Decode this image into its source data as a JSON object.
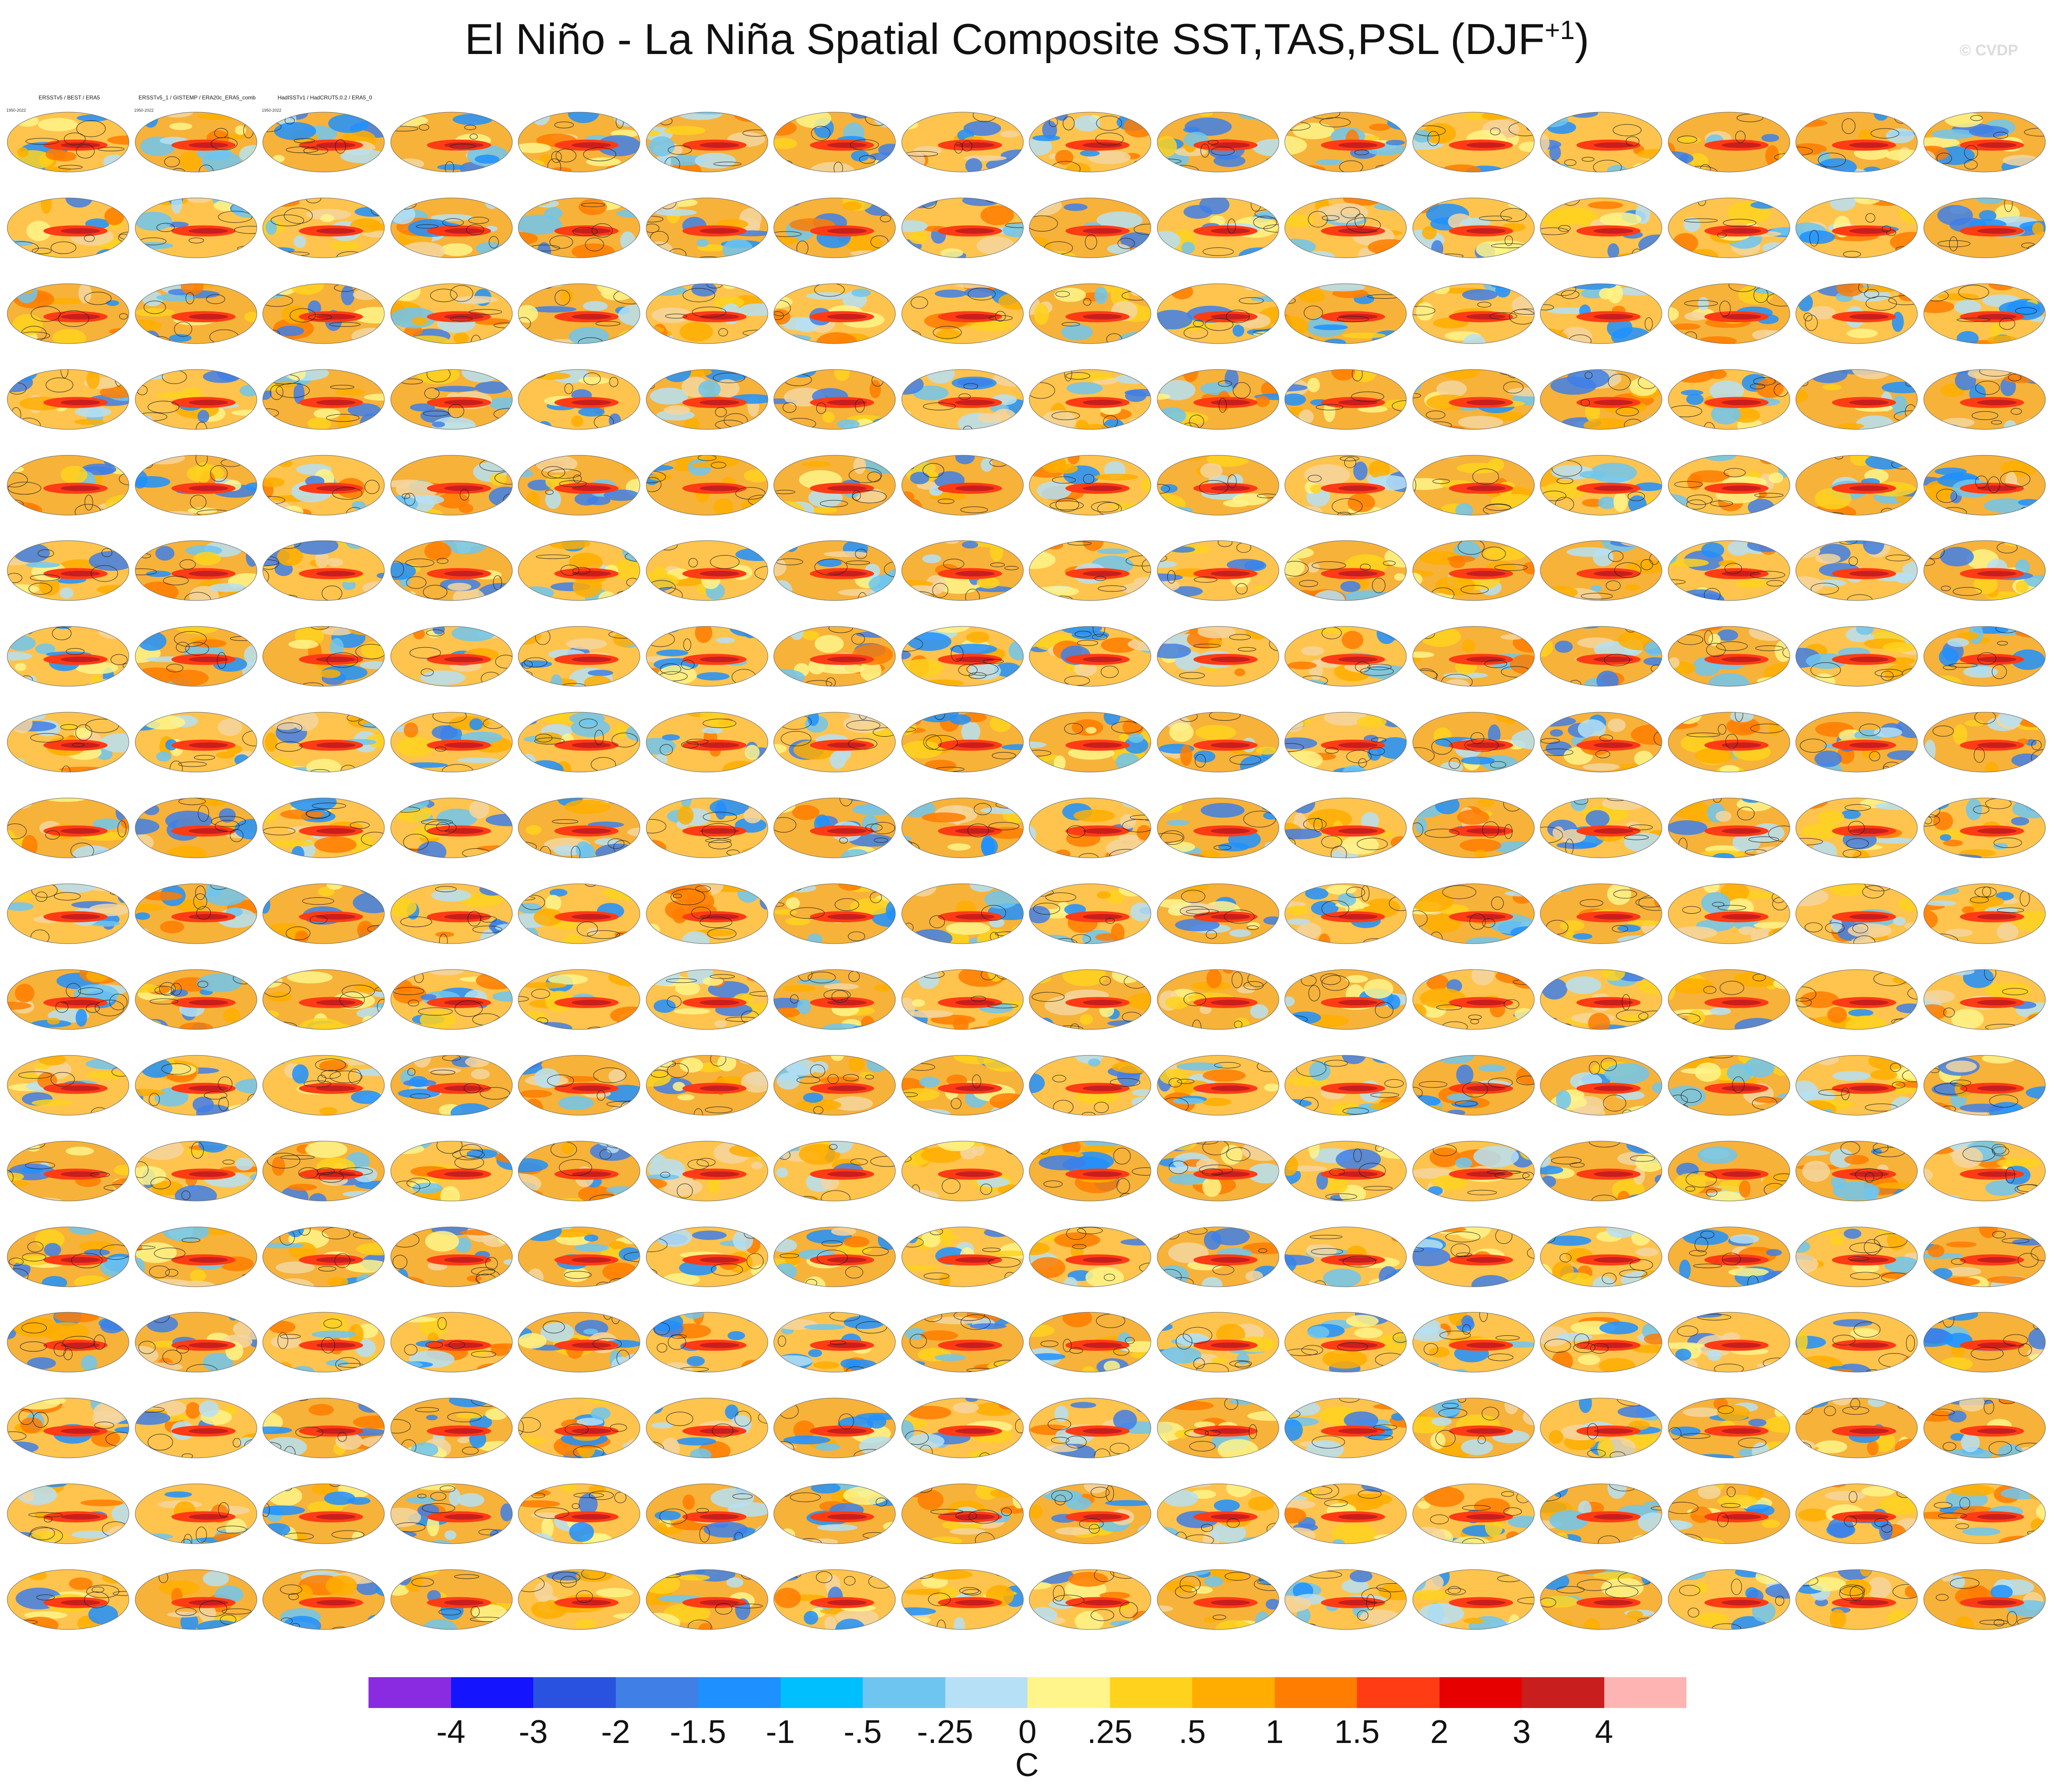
{
  "figure": {
    "title_main": "El Niño - La Niña Spatial Composite SST,TAS,PSL (DJF",
    "title_superscript": "+1",
    "title_tail": ")",
    "watermark": "© CVDP"
  },
  "panels": {
    "observations": [
      {
        "title": "ERSSTv5 / BEST / ERA5",
        "years": "1950-2022"
      },
      {
        "title": "ERSSTv5_1 / GISTEMP / ERA20c_ERA5_comb",
        "years": "1950-2022"
      },
      {
        "title": "HadISSTv1 / HadCRUT5.0.2 / ERA5_0",
        "years": "1950-2022"
      }
    ],
    "model_color": "#2f9be0",
    "observation_color": "#111111"
  },
  "colorbar": {
    "colors": [
      "#8a2be2",
      "#1414ff",
      "#2a52e0",
      "#3f7fe6",
      "#1e90ff",
      "#00bfff",
      "#6ec6f0",
      "#b6e0f5",
      "#fff58a",
      "#ffd21e",
      "#ffae00",
      "#ff7d00",
      "#ff3c14",
      "#e60000",
      "#c81e1e",
      "#ffb4b4"
    ],
    "labels": [
      "-4",
      "-3",
      "-2",
      "-1.5",
      "-1",
      "-.5",
      "-.25",
      "0",
      ".25",
      ".5",
      "1",
      "1.5",
      "2",
      "3",
      "4"
    ],
    "units": "C"
  }
}
